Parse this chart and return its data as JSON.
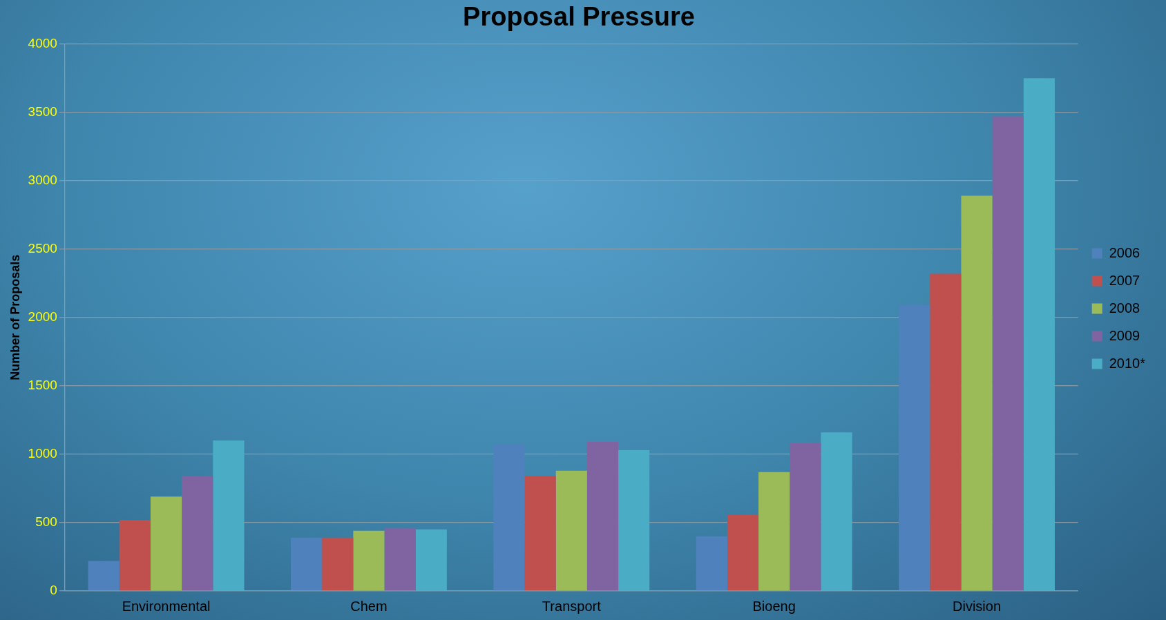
{
  "chart_data": {
    "type": "bar",
    "title": "Proposal Pressure",
    "ylabel": "Number of Proposals",
    "categories": [
      "Environmental",
      "Chem",
      "Transport",
      "Bioeng",
      "Division"
    ],
    "series": [
      {
        "name": "2006",
        "color": "#4f81bd",
        "values": [
          220,
          390,
          1070,
          400,
          2090
        ]
      },
      {
        "name": "2007",
        "color": "#c0504d",
        "values": [
          520,
          390,
          840,
          560,
          2320
        ]
      },
      {
        "name": "2008",
        "color": "#9bbb59",
        "values": [
          690,
          440,
          880,
          870,
          2890
        ]
      },
      {
        "name": "2009",
        "color": "#8064a2",
        "values": [
          840,
          460,
          1090,
          1080,
          3470
        ]
      },
      {
        "name": "2010*",
        "color": "#4bacc6",
        "values": [
          1100,
          450,
          1030,
          1160,
          3750
        ]
      }
    ],
    "ylim": [
      0,
      4000
    ],
    "yticks": [
      0,
      500,
      1000,
      1500,
      2000,
      2500,
      3000,
      3500,
      4000
    ],
    "grid": "y",
    "legend": "right"
  }
}
